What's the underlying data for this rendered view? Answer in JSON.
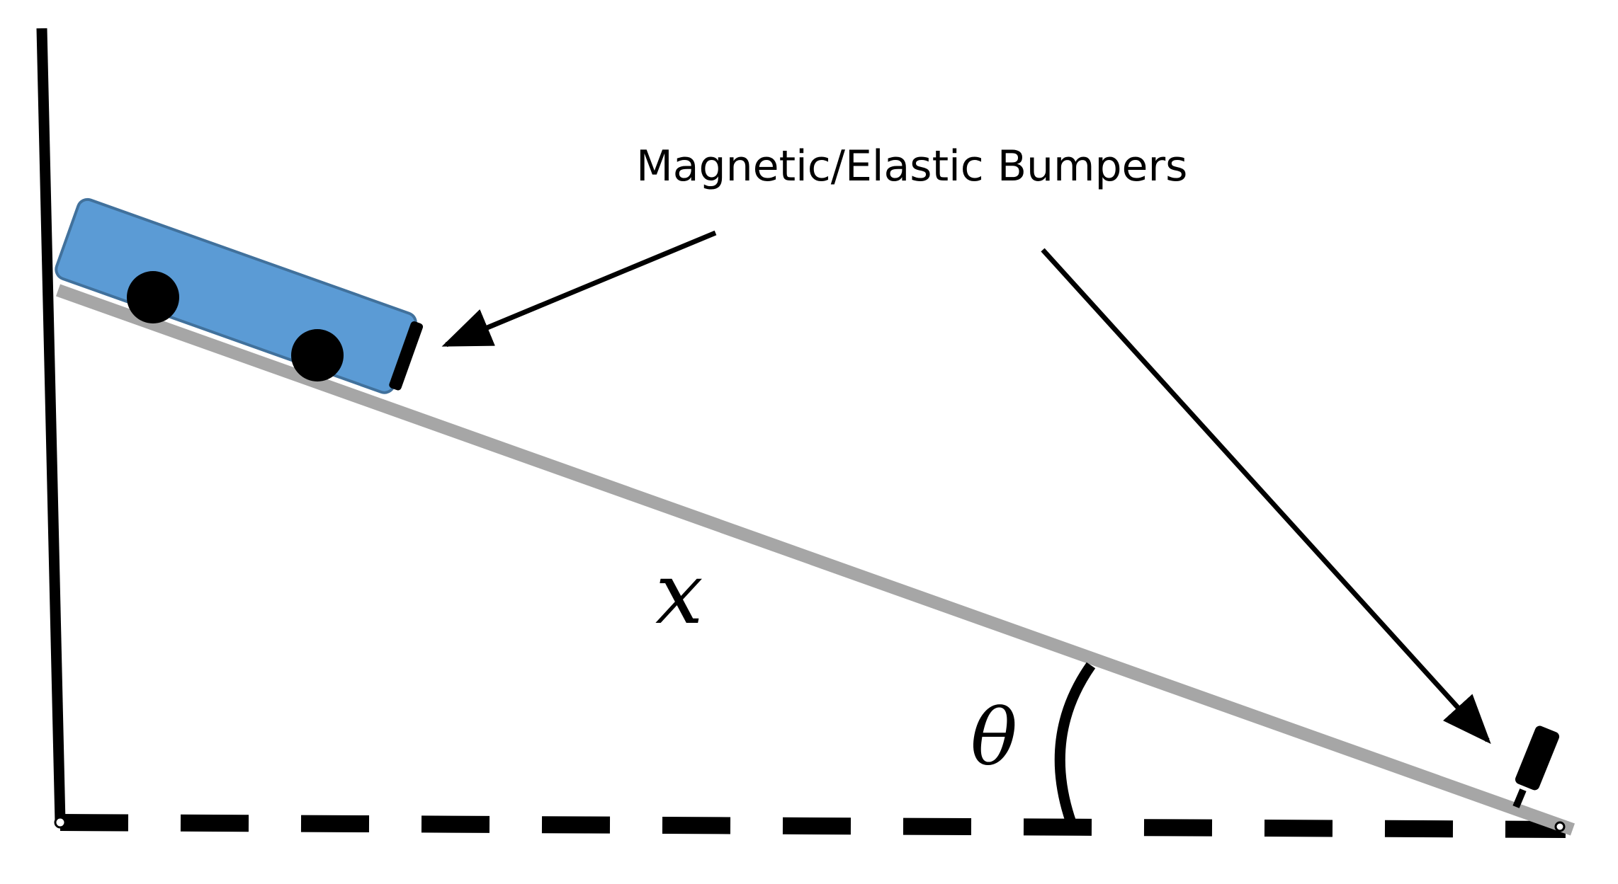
{
  "labels": {
    "bumpers": "Magnetic/Elastic Bumpers",
    "distance": "x",
    "angle": "θ"
  },
  "colors": {
    "ramp": "#A6A6A6",
    "cart_fill": "#5B9BD5",
    "cart_stroke": "#41719C",
    "ink": "#000000",
    "background": "#FFFFFF"
  }
}
